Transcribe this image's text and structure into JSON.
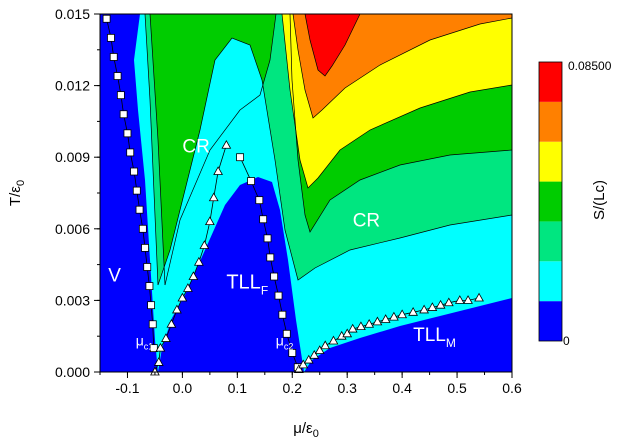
{
  "chart_data": {
    "type": "heatmap",
    "title": "",
    "xlabel_main": "μ/ε",
    "xlabel_sub": "0",
    "ylabel_main": "T/ε",
    "ylabel_sub": "0",
    "xlim": [
      -0.15,
      0.6
    ],
    "ylim": [
      0.0,
      0.015
    ],
    "x_ticks": [
      {
        "value": -0.1,
        "label": "-0.1"
      },
      {
        "value": 0.0,
        "label": "0.0"
      },
      {
        "value": 0.1,
        "label": "0.1"
      },
      {
        "value": 0.2,
        "label": "0.2"
      },
      {
        "value": 0.3,
        "label": "0.3"
      },
      {
        "value": 0.4,
        "label": "0.4"
      },
      {
        "value": 0.5,
        "label": "0.5"
      },
      {
        "value": 0.6,
        "label": "0.6"
      }
    ],
    "y_ticks": [
      {
        "value": 0.0,
        "label": "0.000"
      },
      {
        "value": 0.003,
        "label": "0.003"
      },
      {
        "value": 0.006,
        "label": "0.006"
      },
      {
        "value": 0.009,
        "label": "0.009"
      },
      {
        "value": 0.012,
        "label": "0.012"
      },
      {
        "value": 0.015,
        "label": "0.015"
      }
    ],
    "colorbar": {
      "label": "S/(Lc)",
      "max_label": "0.08500",
      "min_label": "0",
      "colors": [
        "#0000ff",
        "#00ffff",
        "#00e680",
        "#00cc00",
        "#ffff00",
        "#ff8000",
        "#ff0000"
      ]
    },
    "region_labels": [
      {
        "text": "CR",
        "x": 0.0,
        "y": 0.0092,
        "size": 19
      },
      {
        "text": "CR",
        "x": 0.31,
        "y": 0.0061,
        "size": 19
      },
      {
        "text": "V",
        "x": -0.135,
        "y": 0.0038,
        "size": 19
      },
      {
        "text": "TLL",
        "sub": "F",
        "x": 0.08,
        "y": 0.0035,
        "size": 20
      },
      {
        "text": "TLL",
        "sub": "M",
        "x": 0.42,
        "y": 0.0013,
        "size": 19
      },
      {
        "text": "μ",
        "sub": "c1",
        "x": -0.085,
        "y": 0.0011,
        "size": 14
      },
      {
        "text": "μ",
        "sub": "c2",
        "x": 0.17,
        "y": 0.0011,
        "size": 14
      }
    ],
    "series": [
      {
        "name": "",
        "marker": "square",
        "points": [
          [
            -0.138,
            0.0148
          ],
          [
            -0.13,
            0.014
          ],
          [
            -0.125,
            0.0132
          ],
          [
            -0.118,
            0.0124
          ],
          [
            -0.112,
            0.0116
          ],
          [
            -0.107,
            0.0108
          ],
          [
            -0.1,
            0.01
          ],
          [
            -0.095,
            0.0092
          ],
          [
            -0.088,
            0.0084
          ],
          [
            -0.083,
            0.0076
          ],
          [
            -0.078,
            0.0068
          ],
          [
            -0.072,
            0.006
          ],
          [
            -0.068,
            0.0052
          ],
          [
            -0.064,
            0.0044
          ],
          [
            -0.06,
            0.0036
          ],
          [
            -0.057,
            0.0028
          ],
          [
            -0.054,
            0.002
          ],
          [
            -0.052,
            0.001
          ],
          [
            0.105,
            0.009
          ],
          [
            0.125,
            0.008
          ],
          [
            0.14,
            0.0072
          ],
          [
            0.147,
            0.0064
          ],
          [
            0.155,
            0.0056
          ],
          [
            0.16,
            0.0048
          ],
          [
            0.167,
            0.004
          ],
          [
            0.175,
            0.0032
          ],
          [
            0.182,
            0.0024
          ],
          [
            0.19,
            0.0016
          ],
          [
            0.2,
            0.0008
          ],
          [
            0.21,
            0.0002
          ]
        ]
      },
      {
        "name": "",
        "marker": "triangle",
        "points": [
          [
            -0.05,
            0.0
          ],
          [
            -0.043,
            0.0004
          ],
          [
            -0.04,
            0.001
          ],
          [
            -0.03,
            0.0014
          ],
          [
            -0.02,
            0.002
          ],
          [
            -0.01,
            0.0026
          ],
          [
            0.0,
            0.0031
          ],
          [
            0.01,
            0.0035
          ],
          [
            0.02,
            0.004
          ],
          [
            0.03,
            0.0046
          ],
          [
            0.04,
            0.0053
          ],
          [
            0.05,
            0.0063
          ],
          [
            0.057,
            0.0073
          ],
          [
            0.065,
            0.0084
          ],
          [
            0.08,
            0.0095
          ],
          [
            0.212,
            0.0001
          ],
          [
            0.22,
            0.0003
          ],
          [
            0.23,
            0.0005
          ],
          [
            0.24,
            0.0007
          ],
          [
            0.25,
            0.0009
          ],
          [
            0.26,
            0.0011
          ],
          [
            0.275,
            0.0013
          ],
          [
            0.29,
            0.0015
          ],
          [
            0.3,
            0.0016
          ],
          [
            0.31,
            0.0018
          ],
          [
            0.325,
            0.0019
          ],
          [
            0.34,
            0.002
          ],
          [
            0.355,
            0.0021
          ],
          [
            0.37,
            0.0022
          ],
          [
            0.385,
            0.0023
          ],
          [
            0.4,
            0.0024
          ],
          [
            0.42,
            0.0025
          ],
          [
            0.44,
            0.0026
          ],
          [
            0.455,
            0.0027
          ],
          [
            0.47,
            0.0028
          ],
          [
            0.485,
            0.0029
          ],
          [
            0.505,
            0.003
          ],
          [
            0.52,
            0.003
          ],
          [
            0.54,
            0.0031
          ]
        ]
      }
    ],
    "contour_bands": [
      {
        "color": "#0000ff",
        "paths": [
          [
            [
              -0.15,
              0.015
            ],
            [
              -0.13,
              0.015
            ],
            [
              -0.1,
              0.009
            ],
            [
              -0.07,
              0.0045
            ],
            [
              -0.05,
              0.0
            ],
            [
              -0.15,
              0.0
            ]
          ],
          [
            [
              -0.05,
              0.0
            ],
            [
              -0.03,
              0.0018
            ],
            [
              0.0,
              0.0034
            ],
            [
              0.04,
              0.0055
            ],
            [
              0.07,
              0.0075
            ],
            [
              0.095,
              0.0081
            ],
            [
              0.12,
              0.008
            ],
            [
              0.14,
              0.007
            ],
            [
              0.16,
              0.0048
            ],
            [
              0.18,
              0.0022
            ],
            [
              0.215,
              0.0
            ]
          ],
          [
            [
              0.215,
              0.0
            ],
            [
              0.25,
              0.001
            ],
            [
              0.3,
              0.0017
            ],
            [
              0.4,
              0.0024
            ],
            [
              0.5,
              0.003
            ],
            [
              0.6,
              0.0032
            ],
            [
              0.6,
              0.0
            ]
          ]
        ]
      }
    ]
  }
}
